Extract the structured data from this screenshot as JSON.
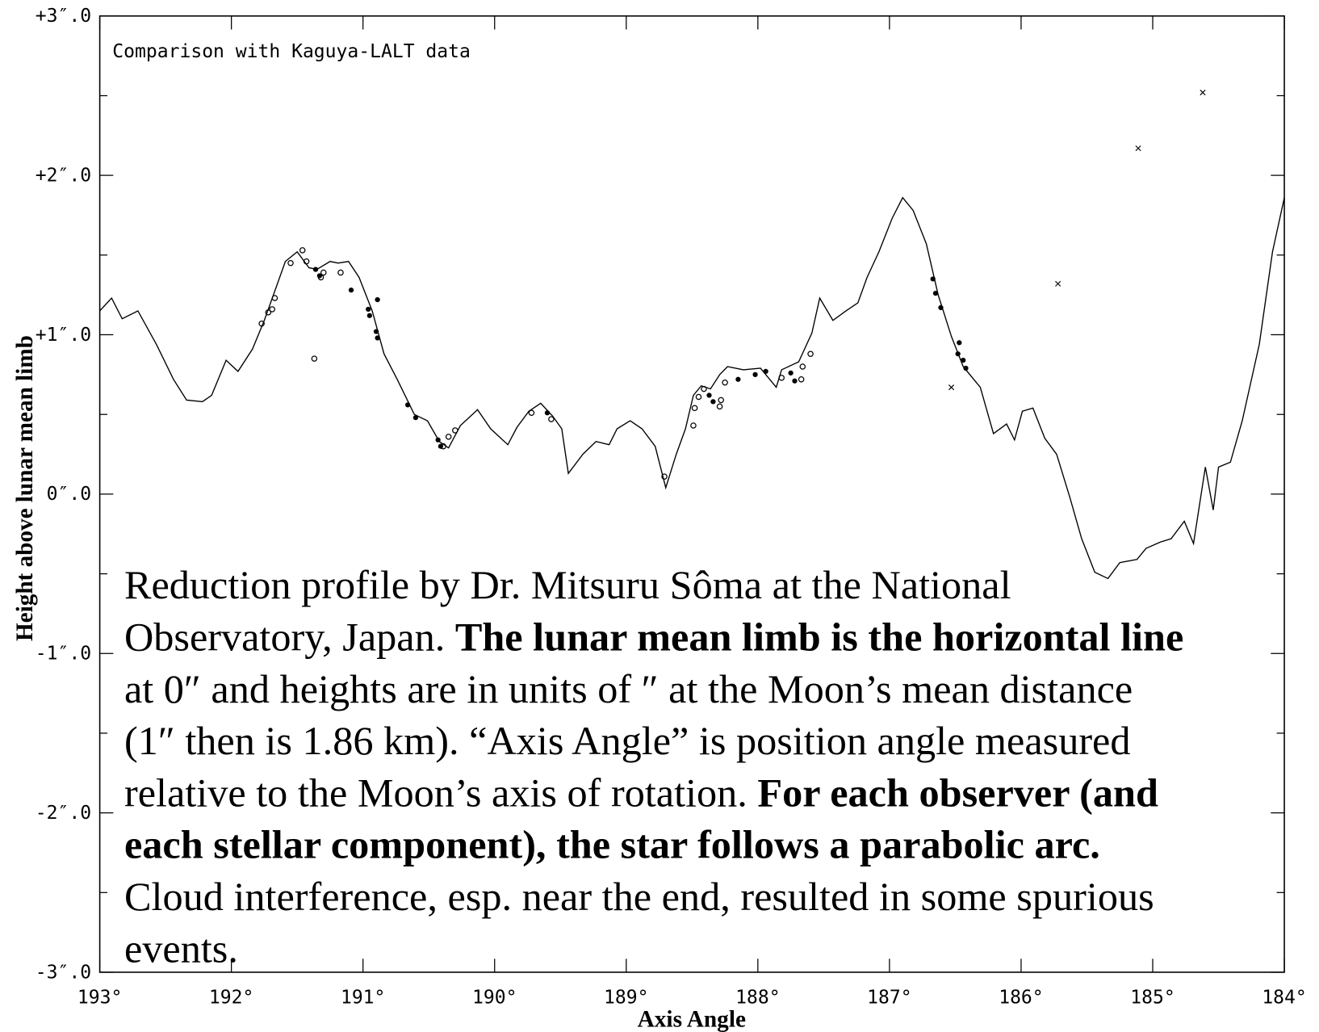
{
  "chart_data": {
    "type": "line",
    "xlabel": "Axis Angle",
    "ylabel": "Height above lunar mean limb",
    "xlim": [
      193,
      184
    ],
    "ylim": [
      -3,
      3
    ],
    "xticks": [
      {
        "value": 193,
        "label": "193°"
      },
      {
        "value": 192,
        "label": "192°"
      },
      {
        "value": 191,
        "label": "191°"
      },
      {
        "value": 190,
        "label": "190°"
      },
      {
        "value": 189,
        "label": "189°"
      },
      {
        "value": 188,
        "label": "188°"
      },
      {
        "value": 187,
        "label": "187°"
      },
      {
        "value": 186,
        "label": "186°"
      },
      {
        "value": 185,
        "label": "185°"
      },
      {
        "value": 184,
        "label": "184°"
      }
    ],
    "yticks": [
      {
        "value": 3,
        "label": "+3″.0"
      },
      {
        "value": 2,
        "label": "+2″.0"
      },
      {
        "value": 1,
        "label": "+1″.0"
      },
      {
        "value": 0,
        "label": "0″.0"
      },
      {
        "value": -1,
        "label": "-1″.0"
      },
      {
        "value": -2,
        "label": "-2″.0"
      },
      {
        "value": -3,
        "label": "-3″.0"
      }
    ],
    "yminorticks": [
      2.5,
      1.5,
      0.5,
      -0.5,
      -1.5,
      -2.5
    ],
    "series": [
      {
        "marker": "line",
        "color": "#000000",
        "x": [
          193.0,
          192.91,
          192.83,
          192.71,
          192.57,
          192.44,
          192.34,
          192.22,
          192.15,
          192.04,
          191.95,
          191.84,
          191.75,
          191.65,
          191.59,
          191.5,
          191.41,
          191.35,
          191.25,
          191.19,
          191.11,
          191.03,
          190.93,
          190.84,
          190.74,
          190.61,
          190.51,
          190.42,
          190.35,
          190.26,
          190.13,
          190.03,
          189.9,
          189.83,
          189.74,
          189.65,
          189.56,
          189.49,
          189.44,
          189.33,
          189.23,
          189.13,
          189.07,
          188.97,
          188.88,
          188.78,
          188.7,
          188.62,
          188.55,
          188.49,
          188.43,
          188.36,
          188.29,
          188.23,
          188.11,
          187.98,
          187.86,
          187.82,
          187.69,
          187.59,
          187.53,
          187.43,
          187.33,
          187.24,
          187.17,
          187.08,
          186.98,
          186.9,
          186.82,
          186.72,
          186.63,
          186.53,
          186.44,
          186.31,
          186.21,
          186.11,
          186.05,
          185.99,
          185.91,
          185.82,
          185.73,
          185.63,
          185.54,
          185.44,
          185.34,
          185.25,
          185.12,
          185.05,
          184.94,
          184.86,
          184.76,
          184.69,
          184.6,
          184.54,
          184.5,
          184.41,
          184.32,
          184.19,
          184.09,
          184.0
        ],
        "values": [
          1.15,
          1.23,
          1.1,
          1.15,
          0.94,
          0.72,
          0.59,
          0.58,
          0.62,
          0.84,
          0.77,
          0.91,
          1.09,
          1.32,
          1.46,
          1.52,
          1.42,
          1.41,
          1.46,
          1.45,
          1.46,
          1.36,
          1.15,
          0.88,
          0.72,
          0.5,
          0.46,
          0.33,
          0.29,
          0.43,
          0.53,
          0.41,
          0.31,
          0.42,
          0.52,
          0.57,
          0.49,
          0.41,
          0.13,
          0.25,
          0.33,
          0.31,
          0.41,
          0.46,
          0.41,
          0.3,
          0.04,
          0.25,
          0.41,
          0.62,
          0.68,
          0.66,
          0.75,
          0.8,
          0.78,
          0.79,
          0.67,
          0.78,
          0.83,
          1.01,
          1.23,
          1.09,
          1.15,
          1.2,
          1.36,
          1.52,
          1.73,
          1.86,
          1.78,
          1.57,
          1.25,
          0.99,
          0.8,
          0.67,
          0.38,
          0.44,
          0.34,
          0.52,
          0.54,
          0.35,
          0.25,
          -0.02,
          -0.28,
          -0.49,
          -0.53,
          -0.43,
          -0.41,
          -0.34,
          -0.3,
          -0.28,
          -0.17,
          -0.31,
          0.17,
          -0.1,
          0.17,
          0.2,
          0.46,
          0.94,
          1.52,
          1.86
        ]
      },
      {
        "marker": "filled-circle",
        "color": "#000000",
        "x": [
          191.36,
          191.33,
          191.09,
          190.89,
          190.96,
          190.95,
          190.9,
          190.89,
          190.66,
          190.43,
          190.41,
          188.37,
          188.34,
          188.15,
          188.02,
          187.94,
          187.75,
          187.72,
          186.67,
          186.65,
          186.61,
          186.48,
          186.47,
          186.44,
          186.42,
          190.6,
          189.6
        ],
        "values": [
          1.41,
          1.37,
          1.28,
          1.22,
          1.16,
          1.12,
          1.02,
          0.98,
          0.56,
          0.34,
          0.3,
          0.62,
          0.58,
          0.72,
          0.75,
          0.77,
          0.76,
          0.71,
          1.35,
          1.26,
          1.17,
          0.88,
          0.95,
          0.84,
          0.79,
          0.48,
          0.51
        ]
      },
      {
        "marker": "open-circle",
        "color": "#000000",
        "x": [
          191.77,
          191.72,
          191.69,
          191.67,
          191.55,
          191.46,
          191.43,
          191.32,
          191.3,
          191.17,
          191.37,
          190.39,
          190.35,
          190.3,
          189.72,
          189.57,
          188.49,
          188.48,
          188.45,
          188.41,
          188.29,
          188.28,
          188.25,
          187.82,
          187.67,
          187.66,
          187.6,
          188.71
        ],
        "values": [
          1.07,
          1.14,
          1.16,
          1.23,
          1.45,
          1.53,
          1.46,
          1.36,
          1.39,
          1.39,
          0.85,
          0.3,
          0.36,
          0.4,
          0.51,
          0.47,
          0.43,
          0.54,
          0.61,
          0.66,
          0.55,
          0.59,
          0.7,
          0.73,
          0.72,
          0.8,
          0.88,
          0.11
        ]
      },
      {
        "marker": "cross",
        "color": "#000000",
        "x": [
          184.62,
          185.11,
          185.72,
          186.53
        ],
        "values": [
          2.52,
          2.17,
          1.32,
          0.67
        ]
      }
    ],
    "annotations": [
      "Comparison with Kaguya-LALT data"
    ],
    "note_lines": [
      [
        {
          "text": "Reduction profile by Dr. Mitsuru Sôma at the National",
          "bold": false
        }
      ],
      [
        {
          "text": "Observatory, Japan. ",
          "bold": false
        },
        {
          "text": "The lunar mean limb is the horizontal line",
          "bold": true
        }
      ],
      [
        {
          "text": "at 0″ and heights are in units of ″ at the Moon’s mean distance",
          "bold": false
        }
      ],
      [
        {
          "text": "(1″ then is 1.86 km). “Axis Angle” is position angle measured",
          "bold": false
        }
      ],
      [
        {
          "text": "relative to the Moon’s axis of rotation. ",
          "bold": false
        },
        {
          "text": "For each observer (and",
          "bold": true
        }
      ],
      [
        {
          "text": "each stellar component), the star follows a parabolic arc.",
          "bold": true
        }
      ],
      [
        {
          "text": "Cloud interference, esp. near the end, resulted in some spurious",
          "bold": false
        }
      ],
      [
        {
          "text": "events.",
          "bold": false
        }
      ]
    ]
  }
}
